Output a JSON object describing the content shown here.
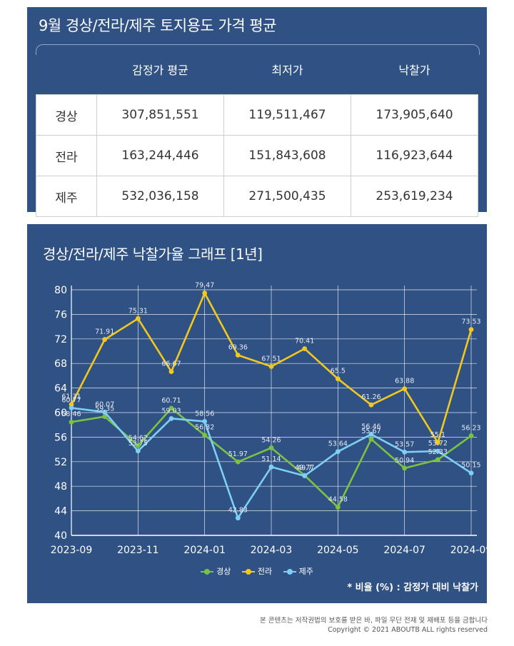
{
  "table_title": "9월 경상/전라/제주 토지용도 가격 평균",
  "table": {
    "columns": [
      "",
      "감정가 평균",
      "최저가",
      "낙찰가"
    ],
    "rows": [
      {
        "region": "경상",
        "appraisal": "307,851,551",
        "lowest": "119,511,467",
        "winning": "173,905,640"
      },
      {
        "region": "전라",
        "appraisal": "163,244,446",
        "lowest": "151,843,608",
        "winning": "116,923,644"
      },
      {
        "region": "제주",
        "appraisal": "532,036,158",
        "lowest": "271,500,435",
        "winning": "253,619,234"
      }
    ]
  },
  "chart_title": "경상/전라/제주 낙찰가율 그래프 [1년]",
  "chart_data": {
    "type": "line",
    "title": "경상/전라/제주 낙찰가율 그래프 [1년]",
    "x": [
      "2023-09",
      "2023-10",
      "2023-11",
      "2023-12",
      "2024-01",
      "2024-02",
      "2024-03",
      "2024-04",
      "2024-05",
      "2024-06",
      "2024-07",
      "2024-08",
      "2024-09"
    ],
    "x_tick_labels": [
      "2023-09",
      "2023-11",
      "2024-01",
      "2024-03",
      "2024-05",
      "2024-07",
      "2024-09"
    ],
    "ylim": [
      40,
      80
    ],
    "y_ticks": [
      40,
      44,
      48,
      52,
      56,
      60,
      64,
      68,
      72,
      76,
      80
    ],
    "grid": true,
    "legend_position": "bottom",
    "series": [
      {
        "name": "경상",
        "color": "#7cc242",
        "values": [
          58.46,
          59.35,
          54.62,
          60.71,
          56.32,
          51.97,
          54.26,
          49.77,
          44.58,
          55.67,
          50.94,
          52.33,
          56.23
        ]
      },
      {
        "name": "전라",
        "color": "#f2c81c",
        "values": [
          61.31,
          71.91,
          75.31,
          66.67,
          79.47,
          69.36,
          67.51,
          70.41,
          65.5,
          61.26,
          63.88,
          55.1,
          73.53
        ]
      },
      {
        "name": "제주",
        "color": "#7ecff5",
        "values": [
          60.77,
          60.07,
          53.75,
          59.03,
          58.56,
          42.83,
          51.14,
          49.7,
          53.64,
          56.46,
          53.57,
          53.72,
          50.15
        ]
      }
    ]
  },
  "note": "* 비율 (%) : 감정가 대비 낙찰가",
  "footer": {
    "line1": "본 콘텐츠는 저작권법의 보호를 받은 바, 파일 무단 전재 및 재배포 등을 금합니다",
    "line2": "Copyright © 2021 ABOUTB ALL rights reserved"
  }
}
